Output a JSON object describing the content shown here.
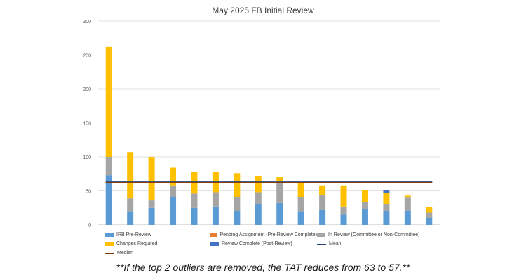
{
  "chart_data": {
    "type": "bar",
    "stacked": true,
    "title": "May 2025 FB Initial Review",
    "xlabel": "",
    "ylabel": "",
    "ylim": [
      0,
      300
    ],
    "yticks": [
      "0",
      "50",
      "100",
      "150",
      "200",
      "250",
      "300"
    ],
    "grid": true,
    "legend_position": "bottom",
    "categories": [
      "",
      "",
      "",
      "",
      "",
      "",
      "",
      "",
      "",
      "",
      "",
      "",
      "",
      "",
      "",
      ""
    ],
    "series": [
      {
        "name": "IRB Pre-Review",
        "color": "#5b9bd5",
        "values": [
          73,
          19,
          25,
          41,
          25,
          27,
          20,
          31,
          32,
          19,
          22,
          15,
          23,
          20,
          21,
          10
        ]
      },
      {
        "name": "Pending Assignment (Pre-Review Complete)",
        "color": "#ed7d31",
        "values": [
          0,
          0,
          0,
          0,
          0,
          0,
          0,
          0,
          0,
          0,
          0,
          0,
          0,
          0,
          0,
          0
        ]
      },
      {
        "name": "In Review (Committee or Non-Committee)",
        "color": "#a5a5a5",
        "values": [
          27,
          20,
          11,
          17,
          21,
          21,
          21,
          17,
          30,
          22,
          22,
          12,
          10,
          11,
          19,
          8
        ]
      },
      {
        "name": "Changes Required",
        "color": "#ffc000",
        "values": [
          162,
          68,
          64,
          26,
          32,
          30,
          35,
          24,
          8,
          21,
          14,
          31,
          18,
          16,
          3,
          8
        ]
      },
      {
        "name": "Review Complete (Post-Review)",
        "color": "#4472c4",
        "values": [
          0,
          0,
          0,
          0,
          0,
          0,
          0,
          0,
          0,
          0,
          0,
          0,
          0,
          4,
          0,
          0
        ]
      }
    ],
    "reference_lines": [
      {
        "name": "Mean",
        "color": "#264478",
        "value": 63
      },
      {
        "name": "Median",
        "color": "#843c0c",
        "value": 62
      }
    ]
  },
  "legend_items": [
    {
      "label": "IRB Pre-Review",
      "color": "#5b9bd5",
      "kind": "box"
    },
    {
      "label": "Pending Assignment (Pre-Review Complete)",
      "color": "#ed7d31",
      "kind": "box"
    },
    {
      "label": "In Review (Committee or Non-Committee)",
      "color": "#a5a5a5",
      "kind": "box"
    },
    {
      "label": "Changes Required",
      "color": "#ffc000",
      "kind": "box"
    },
    {
      "label": "Review Complete (Post-Review)",
      "color": "#4472c4",
      "kind": "box"
    },
    {
      "label": "Mean",
      "color": "#264478",
      "kind": "line"
    },
    {
      "label": "Median",
      "color": "#843c0c",
      "kind": "line"
    }
  ],
  "footnote": "**If the top 2 outliers are removed, the TAT reduces from 63 to 57.**"
}
